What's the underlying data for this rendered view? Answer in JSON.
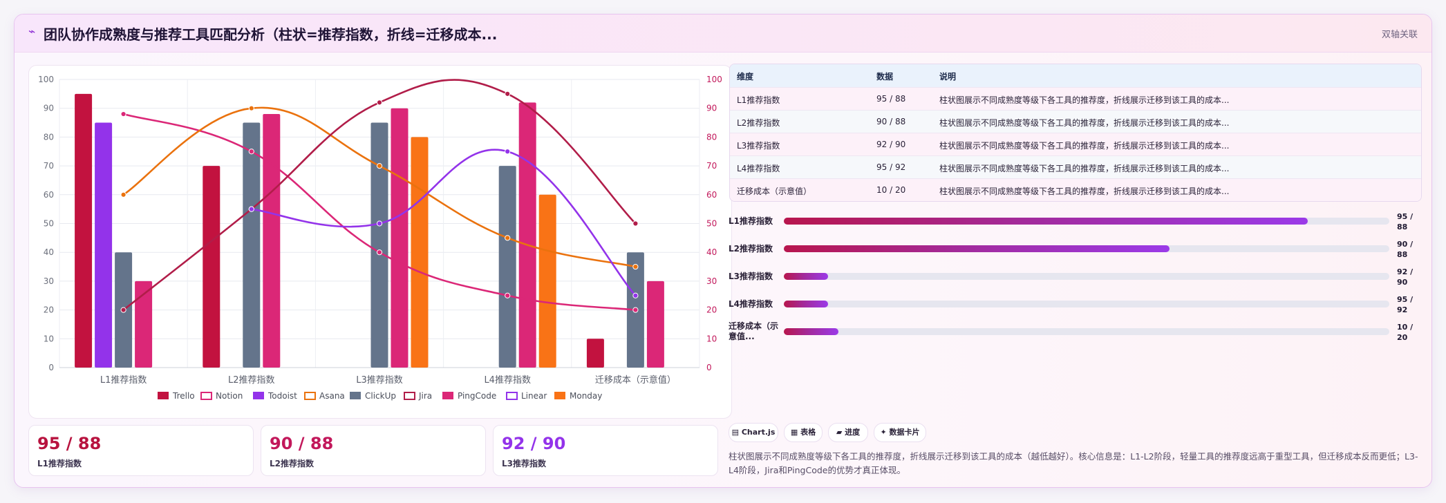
{
  "header": {
    "icon": "chart-line-icon",
    "title": "团队协作成熟度与推荐工具匹配分析（柱状=推荐指数，折线=迁移成本...",
    "right_label": "双轴关联"
  },
  "colors": {
    "Trello": "#c2123f",
    "Notion": "#db2777",
    "Todoist": "#9333ea",
    "Asana": "#ea720e",
    "ClickUp": "#64748b",
    "Jira": "#b11d49",
    "PingCode": "#db2777",
    "Linear": "#9333ea",
    "Monday": "#f97316"
  },
  "chart_data": {
    "type": "bar",
    "categories": [
      "L1推荐指数",
      "L2推荐指数",
      "L3推荐指数",
      "L4推荐指数",
      "迁移成本（示意值）"
    ],
    "ylim": [
      0,
      100
    ],
    "y2lim": [
      0,
      100
    ],
    "yticks": [
      "0",
      "10",
      "20",
      "30",
      "40",
      "50",
      "60",
      "70",
      "80",
      "90",
      "100"
    ],
    "series": [
      {
        "name": "Trello",
        "type": "bar",
        "values": [
          95,
          70,
          null,
          null,
          10
        ]
      },
      {
        "name": "Notion",
        "type": "line",
        "values": [
          88,
          75,
          40,
          25,
          20
        ]
      },
      {
        "name": "Todoist",
        "type": "bar",
        "values": [
          85,
          null,
          null,
          null,
          null
        ]
      },
      {
        "name": "Asana",
        "type": "line",
        "values": [
          60,
          90,
          70,
          45,
          35
        ]
      },
      {
        "name": "ClickUp",
        "type": "bar",
        "values": [
          40,
          85,
          85,
          70,
          40
        ]
      },
      {
        "name": "Jira",
        "type": "line",
        "values": [
          20,
          55,
          92,
          95,
          50
        ]
      },
      {
        "name": "PingCode",
        "type": "bar",
        "values": [
          30,
          88,
          90,
          92,
          30
        ]
      },
      {
        "name": "Linear",
        "type": "line",
        "values": [
          null,
          55,
          50,
          75,
          25
        ]
      },
      {
        "name": "Monday",
        "type": "bar",
        "values": [
          null,
          null,
          80,
          60,
          null
        ]
      }
    ],
    "legend_position": "bottom",
    "legend": [
      "Trello",
      "Notion",
      "Todoist",
      "Asana",
      "ClickUp",
      "Jira",
      "PingCode",
      "Linear",
      "Monday"
    ]
  },
  "kpis": [
    {
      "value": "95 / 88",
      "label": "L1推荐指数",
      "color": "#b8133f"
    },
    {
      "value": "90 / 88",
      "label": "L2推荐指数",
      "color": "#c2185b"
    },
    {
      "value": "92 / 90",
      "label": "L3推荐指数",
      "color": "#9333ea"
    }
  ],
  "table": {
    "headers": [
      "维度",
      "数据",
      "说明"
    ],
    "rows": [
      [
        "L1推荐指数",
        "95 / 88",
        "柱状图展示不同成熟度等级下各工具的推荐度，折线展示迁移到该工具的成本..."
      ],
      [
        "L2推荐指数",
        "90 / 88",
        "柱状图展示不同成熟度等级下各工具的推荐度，折线展示迁移到该工具的成本..."
      ],
      [
        "L3推荐指数",
        "92 / 90",
        "柱状图展示不同成熟度等级下各工具的推荐度，折线展示迁移到该工具的成本..."
      ],
      [
        "L4推荐指数",
        "95 / 92",
        "柱状图展示不同成熟度等级下各工具的推荐度，折线展示迁移到该工具的成本..."
      ],
      [
        "迁移成本（示意值）",
        "10 / 20",
        "柱状图展示不同成熟度等级下各工具的推荐度，折线展示迁移到该工具的成本..."
      ]
    ]
  },
  "progress": [
    {
      "label": "L1推荐指数",
      "value_line1": "95 /",
      "value_line2": "88",
      "fraction": 0.865
    },
    {
      "label": "L2推荐指数",
      "value_line1": "90 /",
      "value_line2": "88",
      "fraction": 0.637
    },
    {
      "label": "L3推荐指数",
      "value_line1": "92 /",
      "value_line2": "90",
      "fraction": 0.073
    },
    {
      "label": "L4推荐指数",
      "value_line1": "95 /",
      "value_line2": "92",
      "fraction": 0.073
    },
    {
      "label": "迁移成本（示意值...",
      "value_line1": "10 /",
      "value_line2": "20",
      "fraction": 0.09
    }
  ],
  "chips": [
    {
      "icon": "chart-icon",
      "label": "Chart.js",
      "glyph": "▤"
    },
    {
      "icon": "table-icon",
      "label": "表格",
      "glyph": "▦"
    },
    {
      "icon": "progress-icon",
      "label": "进度",
      "glyph": "▰"
    },
    {
      "icon": "card-icon",
      "label": "数据卡片",
      "glyph": "✦"
    }
  ],
  "description": "柱状图展示不同成熟度等级下各工具的推荐度，折线展示迁移到该工具的成本（越低越好）。核心信息是：L1-L2阶段，轻量工具的推荐度远高于重型工具，但迁移成本反而更低；L3-L4阶段，Jira和PingCode的优势才真正体现。"
}
